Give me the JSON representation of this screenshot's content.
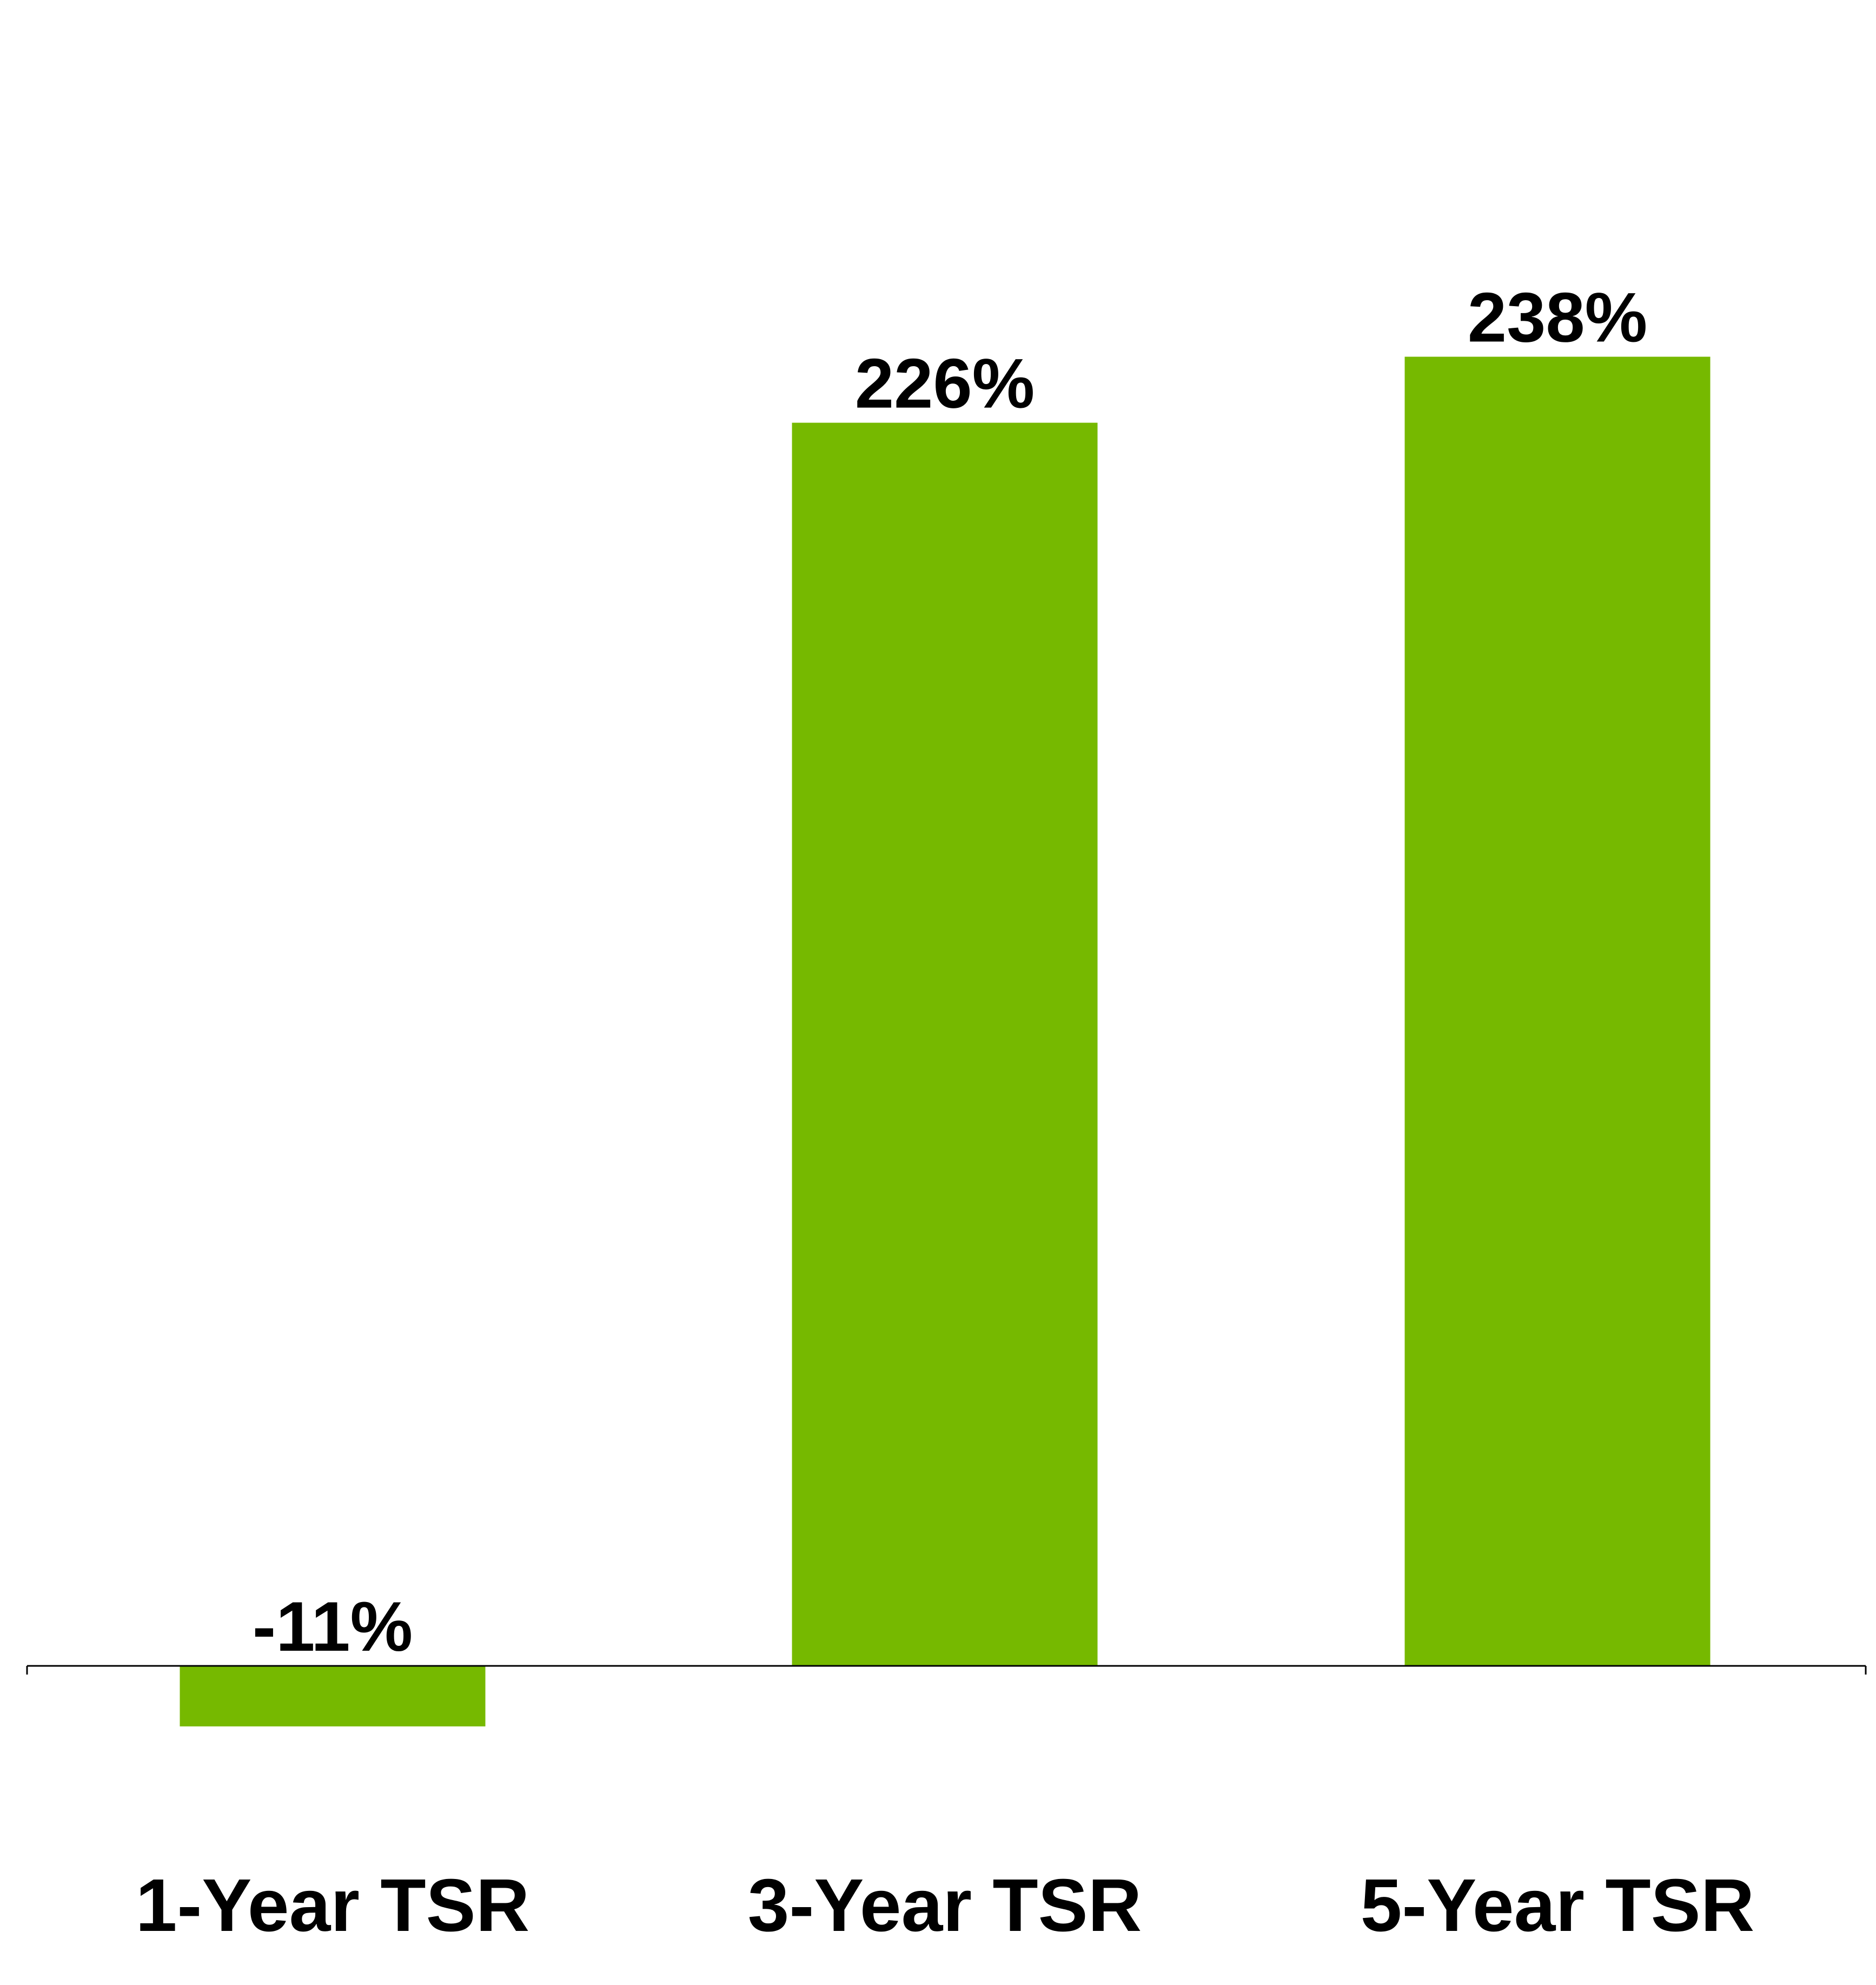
{
  "chart_data": {
    "type": "bar",
    "categories": [
      "1-Year TSR",
      "3-Year TSR",
      "5-Year TSR"
    ],
    "values": [
      -11,
      226,
      238
    ],
    "data_labels": [
      "-11%",
      "226%",
      "238%"
    ],
    "unit": "%",
    "ylim": [
      -30,
      290
    ],
    "grid": false,
    "legend": "none",
    "bar_color": "#76b900",
    "axis_color": "#000000"
  }
}
